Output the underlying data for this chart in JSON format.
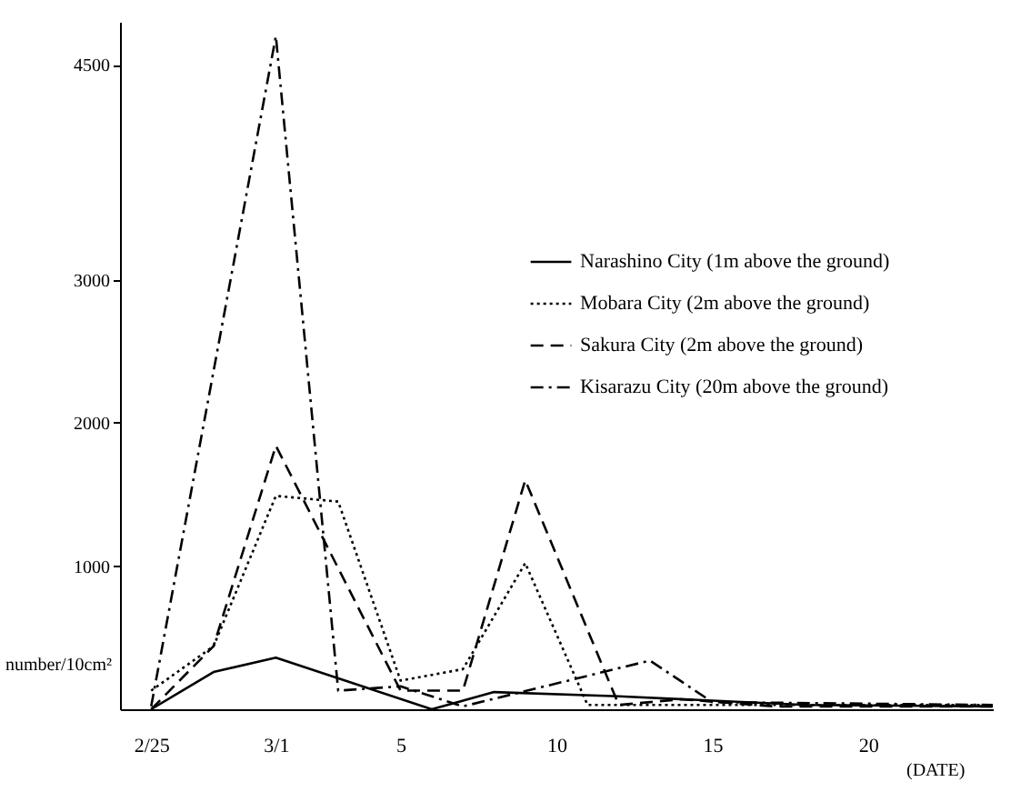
{
  "chart_data": {
    "type": "line",
    "xlabel": "(DATE)",
    "ylabel": "number/10cm²",
    "xlim": [
      "--02-24",
      "--03-24"
    ],
    "xticks": [
      {
        "value": "--02-25",
        "label": "2/25"
      },
      {
        "value": "--03-01",
        "label": "3/1"
      },
      {
        "value": "--03-05",
        "label": "5"
      },
      {
        "value": "--03-10",
        "label": "10"
      },
      {
        "value": "--03-15",
        "label": "15"
      },
      {
        "value": "--03-20",
        "label": "20"
      }
    ],
    "ylim": [
      0,
      4800
    ],
    "yticks": [
      1000,
      2000,
      3000,
      4500
    ],
    "grid": false,
    "legend": "top right",
    "marker": "none",
    "series": [
      {
        "name": "Narashino City (1m above the ground)",
        "color": "#000000",
        "line_style": "solid",
        "x": [
          "--02-25",
          "--02-27",
          "--03-01",
          "--03-06",
          "--03-08",
          "--03-12",
          "--03-15",
          "--03-18",
          "--03-24"
        ],
        "values": [
          0,
          260,
          360,
          0,
          120,
          90,
          60,
          30,
          20
        ]
      },
      {
        "name": "Mobara City (2m above the ground)",
        "color": "#000000",
        "line_style": "dotted",
        "x": [
          "--02-25",
          "--02-27",
          "--03-01",
          "--03-03",
          "--03-05",
          "--03-07",
          "--03-09",
          "--03-11",
          "--03-15",
          "--03-24"
        ],
        "values": [
          130,
          440,
          1490,
          1450,
          200,
          280,
          1020,
          30,
          30,
          30
        ]
      },
      {
        "name": "Sakura City (2m above the ground)",
        "color": "#000000",
        "line_style": "dashed",
        "x": [
          "--02-25",
          "--02-27",
          "--03-01",
          "--03-05",
          "--03-07",
          "--03-09",
          "--03-12",
          "--03-14",
          "--03-17",
          "--03-24"
        ],
        "values": [
          0,
          440,
          1840,
          130,
          130,
          1600,
          30,
          70,
          20,
          20
        ]
      },
      {
        "name": "Kisarazu City (20m above the ground)",
        "color": "#000000",
        "line_style": "dashdot",
        "x": [
          "--02-25",
          "--03-01",
          "--03-03",
          "--03-05",
          "--03-07",
          "--03-13",
          "--03-15",
          "--03-24"
        ],
        "values": [
          20,
          4700,
          130,
          160,
          20,
          340,
          50,
          30
        ]
      }
    ]
  }
}
